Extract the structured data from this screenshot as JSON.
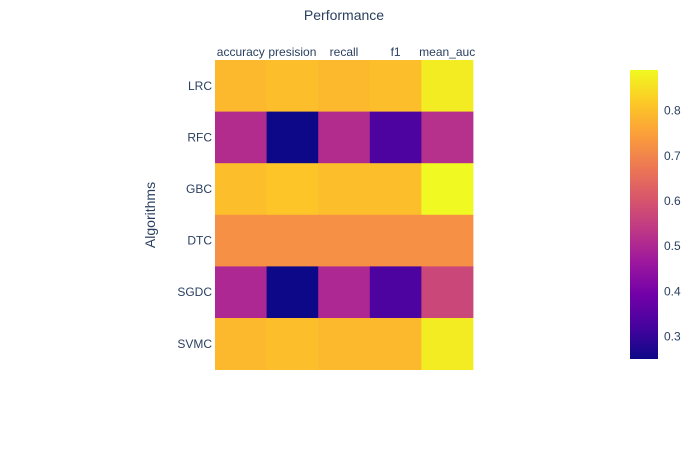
{
  "chart_data": {
    "type": "heatmap",
    "title": "Performance",
    "xlabel": "",
    "ylabel": "Algorithms",
    "x_categories": [
      "accuracy",
      "presision",
      "recall",
      "f1",
      "mean_auc"
    ],
    "y_categories": [
      "LRC",
      "RFC",
      "GBC",
      "DTC",
      "SGDC",
      "SVMC"
    ],
    "z": [
      [
        0.79,
        0.8,
        0.79,
        0.8,
        0.87
      ],
      [
        0.51,
        0.25,
        0.51,
        0.33,
        0.52
      ],
      [
        0.8,
        0.81,
        0.8,
        0.8,
        0.89
      ],
      [
        0.72,
        0.72,
        0.72,
        0.72,
        0.72
      ],
      [
        0.5,
        0.25,
        0.5,
        0.33,
        0.57
      ],
      [
        0.79,
        0.8,
        0.79,
        0.79,
        0.87
      ]
    ],
    "x_axis_side": "top",
    "grid": false,
    "colorscale": "Plasma",
    "colorscale_stops": [
      "#0d0887",
      "#46039f",
      "#7201a8",
      "#9c179e",
      "#bd3786",
      "#d8576b",
      "#ed7953",
      "#fb9f3a",
      "#fdca26",
      "#f0f921"
    ],
    "colorbar": {
      "range": [
        0.25,
        0.89
      ],
      "tick_values": [
        0.3,
        0.4,
        0.5,
        0.6,
        0.7,
        0.8
      ],
      "tick_labels": [
        "0.3",
        "0.4",
        "0.5",
        "0.6",
        "0.7",
        "0.8"
      ],
      "placement": "right"
    }
  }
}
